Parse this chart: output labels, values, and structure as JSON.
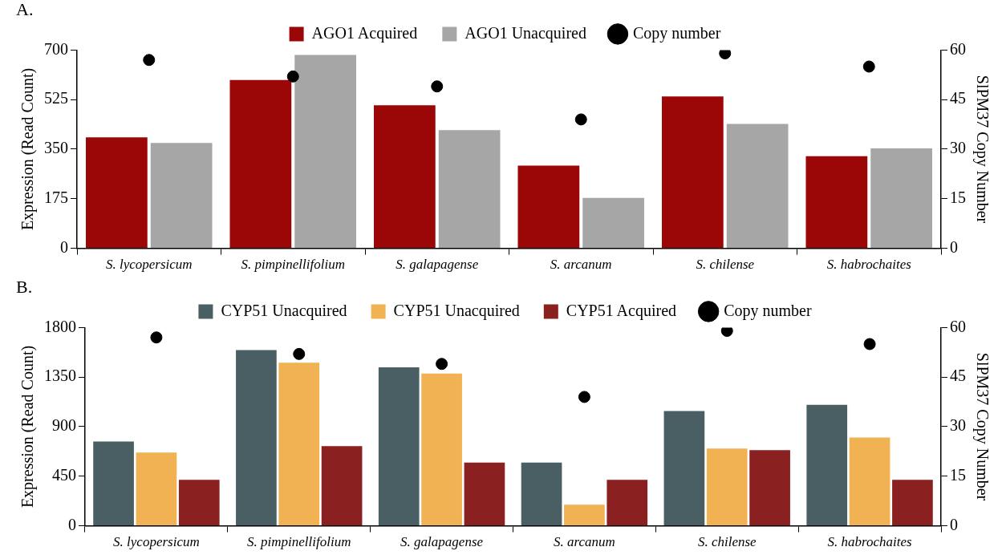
{
  "chart_data": [
    {
      "type": "bar",
      "title": "A.",
      "categories": [
        "S. lycopersicum",
        "S. pimpinellifolium",
        "S. galapagense",
        "S. arcanum",
        "S. chilense",
        "S. habrochaites"
      ],
      "ylabel": "Expression (Read Count)",
      "y2label": "SlPM37 Copy Number",
      "ylim": [
        0,
        700
      ],
      "yticks": [
        0,
        175,
        350,
        525,
        700
      ],
      "y2lim": [
        0,
        60
      ],
      "y2ticks": [
        0,
        15,
        30,
        45,
        60
      ],
      "legend": "top",
      "marker": "circle",
      "series": [
        {
          "name": "AGO1 Acquired",
          "color": "#9b0707",
          "values": [
            392,
            594,
            505,
            292,
            536,
            325
          ]
        },
        {
          "name": "AGO1 Unacquired",
          "color": "#a6a6a6",
          "values": [
            372,
            683,
            417,
            178,
            439,
            353
          ]
        },
        {
          "name": "Copy number",
          "type": "scatter",
          "axis": "y2",
          "color": "#000000",
          "values": [
            57,
            52,
            49,
            39,
            59,
            55
          ]
        }
      ]
    },
    {
      "type": "bar",
      "title": "B.",
      "categories": [
        "S. lycopersicum",
        "S. pimpinellifolium",
        "S. galapagense",
        "S. arcanum",
        "S. chilense",
        "S. habrochaites"
      ],
      "ylabel": "Expression (Read Count)",
      "y2label": "SlPM37 Copy Number",
      "ylim": [
        0,
        1800
      ],
      "yticks": [
        0,
        450,
        900,
        1350,
        1800
      ],
      "y2lim": [
        0,
        60
      ],
      "y2ticks": [
        0,
        15,
        30,
        45,
        60
      ],
      "legend": "top",
      "marker": "circle",
      "series": [
        {
          "name": "CYP51 Unacquired",
          "color": "#4a5f63",
          "values": [
            765,
            1595,
            1439,
            574,
            1042,
            1099
          ]
        },
        {
          "name": "CYP51 Unacquired",
          "color": "#f0b252",
          "values": [
            666,
            1481,
            1382,
            191,
            702,
            801
          ]
        },
        {
          "name": "CYP51 Acquired",
          "color": "#8b2020",
          "values": [
            418,
            723,
            574,
            418,
            687,
            418
          ]
        },
        {
          "name": "Copy number",
          "type": "scatter",
          "axis": "y2",
          "color": "#000000",
          "values": [
            57,
            52,
            49,
            39,
            59,
            55
          ]
        }
      ]
    }
  ]
}
